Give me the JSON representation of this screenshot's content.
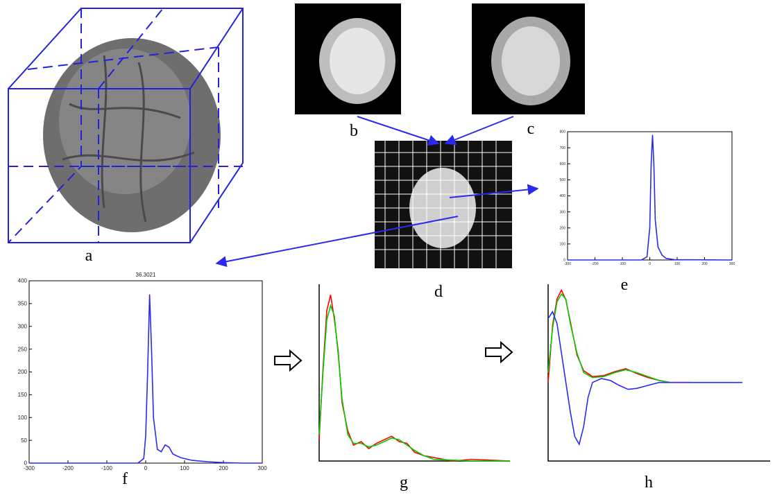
{
  "panel_labels": [
    "a",
    "b",
    "c",
    "d",
    "e",
    "f",
    "g",
    "h"
  ],
  "chart_data": [
    {
      "type": "line",
      "title": "36.3021",
      "xlim": [
        -300,
        300
      ],
      "ylim": [
        0,
        400
      ],
      "xticks": [
        -300,
        -200,
        -100,
        0,
        100,
        200,
        300
      ],
      "yticks": [
        0,
        50,
        100,
        150,
        200,
        250,
        300,
        350,
        400
      ],
      "series": [
        {
          "color": "#2a2aee",
          "x": [
            -300,
            -20,
            -5,
            0,
            5,
            10,
            15,
            20,
            30,
            40,
            50,
            60,
            70,
            90,
            120,
            160,
            200,
            250,
            300
          ],
          "values": [
            0,
            0,
            10,
            60,
            200,
            370,
            250,
            100,
            30,
            25,
            40,
            35,
            20,
            12,
            6,
            3,
            1,
            0,
            0
          ]
        }
      ]
    },
    {
      "type": "line",
      "xlim": [
        -300,
        300
      ],
      "ylim": [
        0,
        800
      ],
      "xticks": [
        -300,
        -200,
        -100,
        0,
        100,
        200,
        300
      ],
      "yticks": [
        0,
        100,
        200,
        300,
        400,
        500,
        600,
        700,
        800
      ],
      "series": [
        {
          "color": "#2a2aee",
          "x": [
            -300,
            -30,
            -10,
            0,
            5,
            10,
            15,
            20,
            30,
            45,
            60,
            90,
            300
          ],
          "values": [
            0,
            0,
            20,
            200,
            600,
            780,
            600,
            250,
            80,
            30,
            10,
            2,
            0
          ]
        }
      ]
    },
    {
      "type": "line",
      "xlim": [
        0,
        100
      ],
      "ylim": [
        0,
        1
      ],
      "series": [
        {
          "color": "#ff0000",
          "x": [
            0,
            2,
            4,
            6,
            8,
            10,
            12,
            15,
            18,
            22,
            26,
            30,
            34,
            38,
            42,
            46,
            50,
            55,
            60,
            70,
            80,
            100
          ],
          "values": [
            0.12,
            0.52,
            0.85,
            0.94,
            0.8,
            0.62,
            0.33,
            0.17,
            0.09,
            0.11,
            0.07,
            0.1,
            0.12,
            0.14,
            0.11,
            0.1,
            0.05,
            0.03,
            0.02,
            0,
            0.01,
            0
          ]
        },
        {
          "color": "#00cc00",
          "x": [
            0,
            2,
            4,
            6,
            8,
            10,
            12,
            15,
            18,
            22,
            26,
            30,
            34,
            38,
            42,
            46,
            50,
            55,
            60,
            70,
            80,
            100
          ],
          "values": [
            0.15,
            0.5,
            0.8,
            0.88,
            0.82,
            0.6,
            0.35,
            0.15,
            0.1,
            0.1,
            0.08,
            0.09,
            0.11,
            0.13,
            0.12,
            0.09,
            0.06,
            0.03,
            0.01,
            0.005,
            0,
            0
          ]
        }
      ]
    },
    {
      "type": "line",
      "xlim": [
        0,
        100
      ],
      "ylim": [
        -0.8,
        1
      ],
      "series": [
        {
          "color": "#ff0000",
          "x": [
            0,
            2,
            4,
            6,
            8,
            10,
            13,
            16,
            20,
            25,
            30,
            35,
            40,
            45,
            50,
            55,
            65
          ],
          "values": [
            0,
            0.58,
            0.85,
            0.94,
            0.84,
            0.62,
            0.28,
            0.12,
            0.06,
            0.07,
            0.11,
            0.14,
            0.09,
            0.05,
            0.02,
            0,
            0
          ]
        },
        {
          "color": "#00cc00",
          "x": [
            0,
            2,
            4,
            6,
            8,
            10,
            13,
            16,
            20,
            25,
            30,
            35,
            40,
            45,
            50,
            55
          ],
          "values": [
            0.1,
            0.55,
            0.82,
            0.9,
            0.85,
            0.6,
            0.3,
            0.1,
            0.05,
            0.06,
            0.1,
            0.13,
            0.1,
            0.06,
            0.02,
            0
          ]
        },
        {
          "color": "#2a2aee",
          "x": [
            0,
            2,
            4,
            6,
            8,
            10,
            12,
            14,
            16,
            18,
            20,
            24,
            28,
            32,
            36,
            40,
            45,
            50,
            60,
            70,
            87.5
          ],
          "values": [
            0.65,
            0.72,
            0.6,
            0.3,
            0,
            -0.3,
            -0.55,
            -0.63,
            -0.45,
            -0.15,
            0,
            0.04,
            0.02,
            -0.03,
            -0.07,
            -0.06,
            -0.03,
            0,
            0,
            0,
            0
          ]
        }
      ]
    }
  ]
}
